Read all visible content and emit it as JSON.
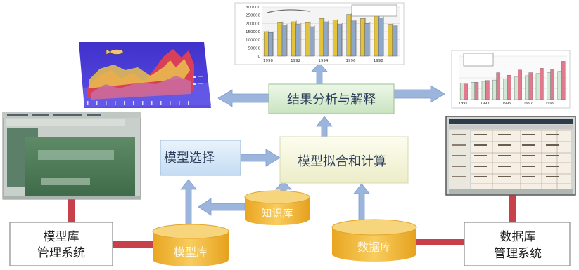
{
  "boxes": {
    "result_analysis": "结果分析与解释",
    "model_select": "模型选择",
    "model_fit": "模型拟合和计算",
    "model_lib_mgmt": [
      "模型库",
      "管理系统"
    ],
    "db_mgmt": [
      "数据库",
      "管理系统"
    ]
  },
  "cylinders": {
    "knowledge_base": "知识库",
    "model_base": "模型库",
    "database": "数据库"
  },
  "charts": {
    "top_bar": {
      "type": "bar",
      "x_ticks": [
        "1990",
        "1992",
        "1994",
        "1996",
        "1998"
      ],
      "y_ticks": [
        "0",
        "50000",
        "100000",
        "150000",
        "200000",
        "250000",
        "300000"
      ],
      "ylim": [
        0,
        300000
      ],
      "series": [
        {
          "color": "#e3c23c",
          "values": [
            150000,
            205000,
            210000,
            205000,
            230000,
            220000,
            255000,
            230000,
            285000,
            195000
          ]
        },
        {
          "color": "#8fa8c8",
          "values": [
            145000,
            190000,
            195000,
            180000,
            210000,
            195000,
            215000,
            200000,
            235000,
            185000
          ]
        }
      ]
    },
    "right_bar": {
      "type": "bar",
      "x_ticks": [
        "1991",
        "1993",
        "1995",
        "1997",
        "1999"
      ],
      "series": [
        {
          "color": "#cfe9d4",
          "values": [
            0.38,
            0.4,
            0.42,
            0.45,
            0.48,
            0.52,
            0.55,
            0.6,
            0.62,
            0.65
          ]
        },
        {
          "color": "#e07b8e",
          "values": [
            0.36,
            0.4,
            0.44,
            0.62,
            0.56,
            0.68,
            0.62,
            0.72,
            0.7,
            0.88
          ]
        }
      ]
    }
  },
  "colors": {
    "arrow": "#9bb5dd",
    "connector": "#c8404a",
    "cylinder": "#f0b93a",
    "box_select": "#dbe9f7",
    "box_result": "#d9ecd2",
    "box_fit": "#f6f6dc",
    "box_mgmt": "#ffffff"
  }
}
